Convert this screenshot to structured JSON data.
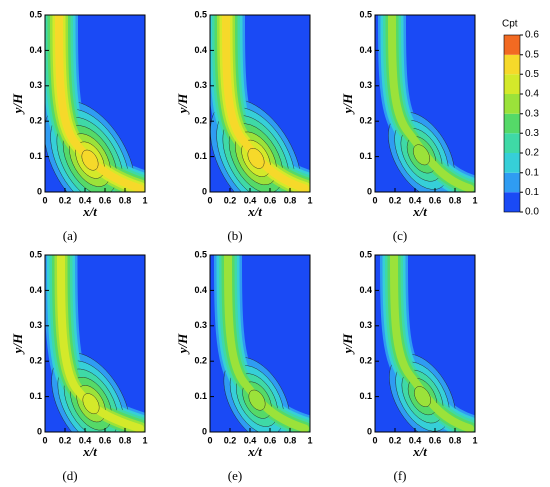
{
  "chart_data": [
    {
      "type": "contour",
      "label": "(a)",
      "xlabel": "x/t",
      "ylabel": "y/H",
      "xlim": [
        0,
        1
      ],
      "ylim": [
        0,
        0.5
      ],
      "xticks": [
        0,
        0.2,
        0.4,
        0.6,
        0.8,
        1
      ],
      "yticks": [
        0,
        0.1,
        0.2,
        0.3,
        0.4,
        0.5
      ]
    },
    {
      "type": "contour",
      "label": "(b)",
      "xlabel": "x/t",
      "ylabel": "y/H",
      "xlim": [
        0,
        1
      ],
      "ylim": [
        0,
        0.5
      ],
      "xticks": [
        0,
        0.2,
        0.4,
        0.6,
        0.8,
        1
      ],
      "yticks": [
        0,
        0.1,
        0.2,
        0.3,
        0.4,
        0.5
      ]
    },
    {
      "type": "contour",
      "label": "(c)",
      "xlabel": "x/t",
      "ylabel": "y/H",
      "xlim": [
        0,
        1
      ],
      "ylim": [
        0,
        0.5
      ],
      "xticks": [
        0,
        0.2,
        0.4,
        0.6,
        0.8,
        1
      ],
      "yticks": [
        0,
        0.1,
        0.2,
        0.3,
        0.4,
        0.5
      ]
    },
    {
      "type": "contour",
      "label": "(d)",
      "xlabel": "x/t",
      "ylabel": "y/H",
      "xlim": [
        0,
        1
      ],
      "ylim": [
        0,
        0.5
      ],
      "xticks": [
        0,
        0.2,
        0.4,
        0.6,
        0.8,
        1
      ],
      "yticks": [
        0,
        0.1,
        0.2,
        0.3,
        0.4,
        0.5
      ]
    },
    {
      "type": "contour",
      "label": "(e)",
      "xlabel": "x/t",
      "ylabel": "y/H",
      "xlim": [
        0,
        1
      ],
      "ylim": [
        0,
        0.5
      ],
      "xticks": [
        0,
        0.2,
        0.4,
        0.6,
        0.8,
        1
      ],
      "yticks": [
        0,
        0.1,
        0.2,
        0.3,
        0.4,
        0.5
      ]
    },
    {
      "type": "contour",
      "label": "(f)",
      "xlabel": "x/t",
      "ylabel": "y/H",
      "xlim": [
        0,
        1
      ],
      "ylim": [
        0,
        0.5
      ],
      "xticks": [
        0,
        0.2,
        0.4,
        0.6,
        0.8,
        1
      ],
      "yticks": [
        0,
        0.1,
        0.2,
        0.3,
        0.4,
        0.5
      ]
    }
  ],
  "colorbar": {
    "title": "Cpt",
    "levels": [
      {
        "value": 0,
        "label": "0.0"
      },
      {
        "value": 0.067,
        "label": "0.1"
      },
      {
        "value": 0.133,
        "label": "0.1"
      },
      0.2,
      {
        "value": 0.267,
        "label": "0.3"
      },
      {
        "value": 0.333,
        "label": "0.3"
      },
      0.4,
      {
        "value": 0.467,
        "label": "0.5"
      },
      {
        "value": 0.533,
        "label": "0.5"
      },
      0.6
    ],
    "colors": [
      "#1a4af5",
      "#2f9cf2",
      "#36cfd8",
      "#3fd9a6",
      "#55d968",
      "#9be23a",
      "#d4e92a",
      "#f6d92a",
      "#f26a22"
    ]
  }
}
